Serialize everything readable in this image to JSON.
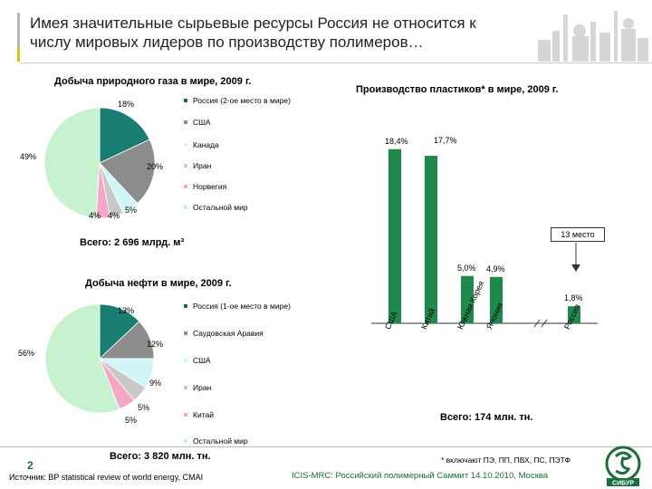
{
  "title": "Имея значительные сырьевые ресурсы Россия не относится к числу мировых лидеров по производству полимеров…",
  "gas": {
    "title": "Добыча природного газа в мире, 2009 г.",
    "total": "Всего: 2 696 млрд. м³",
    "legend": [
      "Россия (2-ое место в мире)",
      "США",
      "Канада",
      "Иран",
      "Норвегия",
      "Остальной мир"
    ],
    "labels": [
      "18%",
      "20%",
      "5%",
      "4%",
      "4%",
      "49%"
    ]
  },
  "oil": {
    "title": "Добыча нефти в мире, 2009 г.",
    "total": "Всего: 3 820 млн. тн.",
    "legend": [
      "Россия (1-ое место в мире)",
      "Саудовская Аравия",
      "США",
      "Иран",
      "Китай",
      "Остальной мир"
    ],
    "labels": [
      "13%",
      "12%",
      "9%",
      "5%",
      "5%",
      "56%"
    ]
  },
  "plastics": {
    "title": "Производство пластиков* в мире, 2009 г.",
    "total": "Всего: 174 млн. тн.",
    "rank": "13 место",
    "footnote": "* включают ПЭ, ПП, ПВХ, ПС, ПЭТФ"
  },
  "chart_data": [
    {
      "type": "pie",
      "title": "Добыча природного газа в мире, 2009 г.",
      "categories": [
        "Россия (2-ое место в мире)",
        "США",
        "Канада",
        "Иран",
        "Норвегия",
        "Остальной мир"
      ],
      "values": [
        18,
        20,
        5,
        4,
        4,
        49
      ],
      "colors": [
        "#1a7d74",
        "#8c8c8c",
        "#d2f5f7",
        "#c8c8c8",
        "#f4a7c6",
        "#c6f2cf"
      ]
    },
    {
      "type": "pie",
      "title": "Добыча нефти в мире, 2009 г.",
      "categories": [
        "Россия (1-ое место в мире)",
        "Саудовская Аравия",
        "США",
        "Иран",
        "Китай",
        "Остальной мир"
      ],
      "values": [
        13,
        12,
        9,
        5,
        5,
        56
      ],
      "colors": [
        "#1a7d74",
        "#8c8c8c",
        "#d2f5f7",
        "#c8c8c8",
        "#f4a7c6",
        "#c6f2cf"
      ]
    },
    {
      "type": "bar",
      "title": "Производство пластиков* в мире, 2009 г.",
      "categories": [
        "США",
        "Китай",
        "Южная Корея",
        "Япония",
        "Россия"
      ],
      "values": [
        18.4,
        17.7,
        5.0,
        4.9,
        1.8
      ],
      "labels": [
        "18,4%",
        "17,7%",
        "5,0%",
        "4,9%",
        "1,8%"
      ],
      "color": "#1f8a4c",
      "ylim": [
        0,
        20
      ]
    }
  ],
  "footer": {
    "page": "2",
    "source": "Источник: BP statistical review of world energy, CMAI",
    "conference": "ICIS-MRC: Российский полимерный Саммит 14.10.2010, Москва",
    "logo_text": "СИБУР"
  }
}
